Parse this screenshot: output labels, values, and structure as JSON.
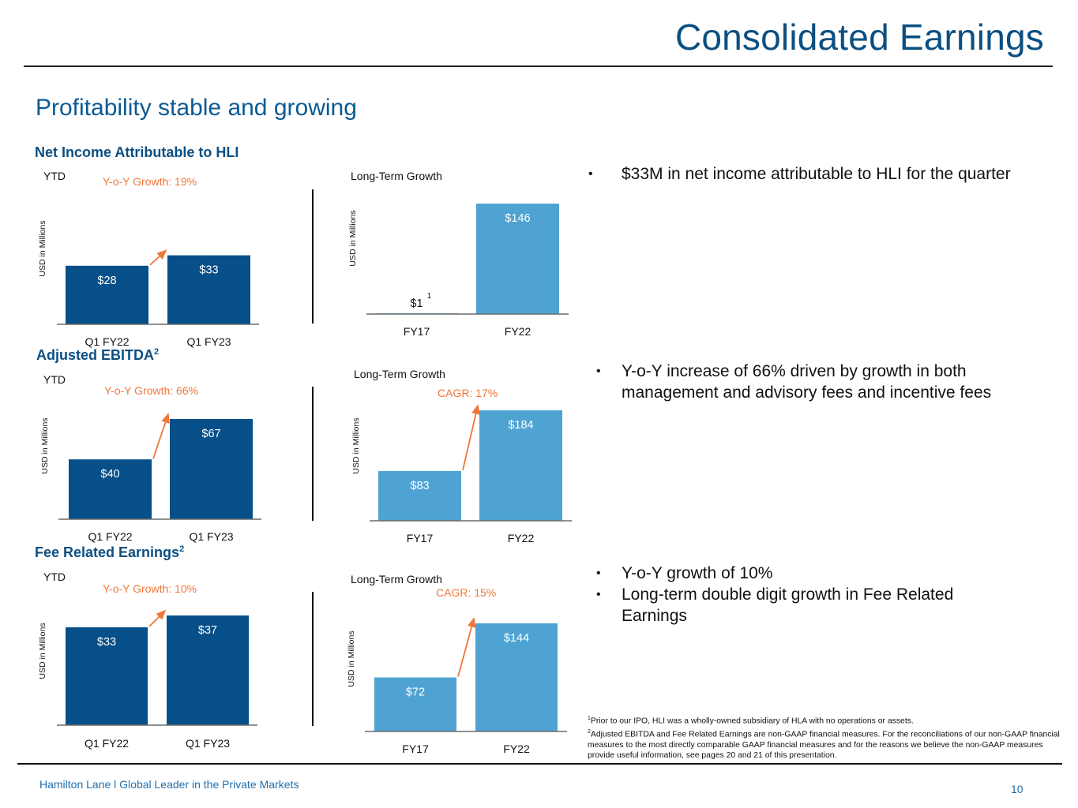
{
  "header": {
    "title": "Consolidated Earnings"
  },
  "subtitle": "Profitability stable and growing",
  "colors": {
    "dark_bar": "#064f88",
    "light_bar": "#4fa3d3",
    "accent": "#f0763b",
    "title": "#0b4f82"
  },
  "sections": [
    {
      "title": "Net Income Attributable to HLI",
      "superscript": "",
      "bullets": [
        "$33M in net income attributable to HLI for the quarter"
      ]
    },
    {
      "title": "Adjusted EBITDA",
      "superscript": "2",
      "bullets": [
        "Y-o-Y increase of 66% driven by growth in both management and advisory fees and incentive fees"
      ]
    },
    {
      "title": "Fee Related Earnings",
      "superscript": "2",
      "bullets": [
        "Y-o-Y growth of 10%",
        "Long-term double digit growth in Fee Related Earnings"
      ]
    }
  ],
  "chart_data": [
    {
      "id": "ni-ytd",
      "type": "bar",
      "title": "YTD",
      "annotation": "Y-o-Y Growth: 19%",
      "ylabel": "USD in Millions",
      "categories": [
        "Q1 FY22",
        "Q1 FY23"
      ],
      "values": [
        28,
        33
      ],
      "labels": [
        "$28",
        "$33"
      ],
      "label_superscripts": [
        "",
        ""
      ],
      "color": "#064f88",
      "ylim": [
        0,
        40
      ],
      "arrow": true
    },
    {
      "id": "ni-lt",
      "type": "bar",
      "title": "Long-Term Growth",
      "annotation": "",
      "ylabel": "USD in Millions",
      "categories": [
        "FY17",
        "FY22"
      ],
      "values": [
        1,
        146
      ],
      "labels": [
        "$1",
        "$146"
      ],
      "label_superscripts": [
        "1",
        ""
      ],
      "color": "#4fa3d3",
      "ylim": [
        0,
        146
      ],
      "arrow": false
    },
    {
      "id": "ebitda-ytd",
      "type": "bar",
      "title": "YTD",
      "annotation": "Y-o-Y Growth: 66%",
      "ylabel": "USD in Millions",
      "categories": [
        "Q1 FY22",
        "Q1 FY23"
      ],
      "values": [
        40,
        67
      ],
      "labels": [
        "$40",
        "$67"
      ],
      "label_superscripts": [
        "",
        ""
      ],
      "color": "#064f88",
      "ylim": [
        0,
        67
      ],
      "arrow": true
    },
    {
      "id": "ebitda-lt",
      "type": "bar",
      "title": "Long-Term Growth",
      "annotation": "CAGR: 17%",
      "ylabel": "USD in Millions",
      "categories": [
        "FY17",
        "FY22"
      ],
      "values": [
        83,
        184
      ],
      "labels": [
        "$83",
        "$184"
      ],
      "label_superscripts": [
        "",
        ""
      ],
      "color": "#4fa3d3",
      "ylim": [
        0,
        184
      ],
      "arrow": true
    },
    {
      "id": "fre-ytd",
      "type": "bar",
      "title": "YTD",
      "annotation": "Y-o-Y Growth: 10%",
      "ylabel": "USD in Millions",
      "categories": [
        "Q1 FY22",
        "Q1 FY23"
      ],
      "values": [
        33,
        37
      ],
      "labels": [
        "$33",
        "$37"
      ],
      "label_superscripts": [
        "",
        ""
      ],
      "color": "#064f88",
      "ylim": [
        0,
        37
      ],
      "arrow": true
    },
    {
      "id": "fre-lt",
      "type": "bar",
      "title": "Long-Term Growth",
      "annotation": "CAGR: 15%",
      "ylabel": "USD in Millions",
      "categories": [
        "FY17",
        "FY22"
      ],
      "values": [
        72,
        144
      ],
      "labels": [
        "$72",
        "$144"
      ],
      "label_superscripts": [
        "",
        ""
      ],
      "color": "#4fa3d3",
      "ylim": [
        0,
        144
      ],
      "arrow": true
    }
  ],
  "footnotes": [
    {
      "mark": "1",
      "text": "Prior to our IPO, HLI was a wholly-owned subsidiary of HLA with no operations or assets."
    },
    {
      "mark": "2",
      "text": "Adjusted EBITDA and Fee Related Earnings are non-GAAP financial measures. For the reconciliations of our non-GAAP financial measures to the most directly comparable GAAP financial measures and for the reasons we believe the non-GAAP measures provide useful information, see pages 20 and 21 of this presentation."
    }
  ],
  "footer": {
    "left": "Hamilton Lane l Global Leader in the Private Markets",
    "page_number": "10"
  }
}
